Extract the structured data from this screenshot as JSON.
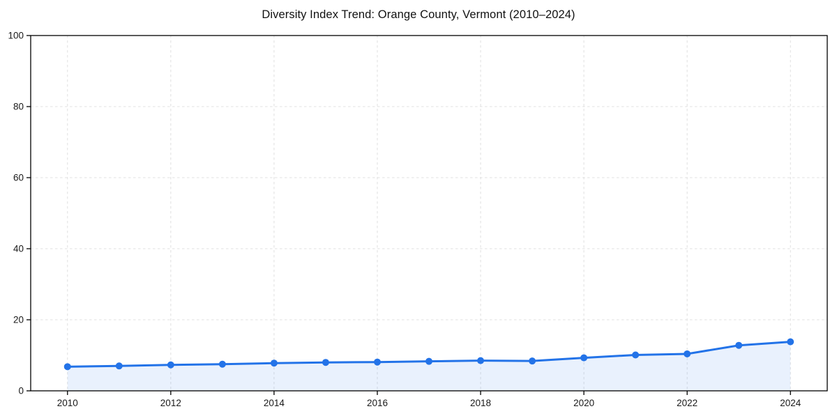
{
  "chart_data": {
    "type": "line",
    "title": "Diversity Index Trend: Orange County, Vermont (2010–2024)",
    "x": [
      2010,
      2011,
      2012,
      2013,
      2014,
      2015,
      2016,
      2017,
      2018,
      2019,
      2020,
      2021,
      2022,
      2023,
      2024
    ],
    "series": [
      {
        "name": "Diversity Index",
        "values": [
          6.8,
          7.0,
          7.3,
          7.5,
          7.8,
          8.0,
          8.1,
          8.3,
          8.5,
          8.4,
          9.3,
          10.1,
          10.4,
          12.8,
          13.8
        ]
      }
    ],
    "xlabel": "",
    "ylabel": "",
    "ylim": [
      0,
      100
    ],
    "yticks": [
      0,
      20,
      40,
      60,
      80,
      100
    ],
    "xticks": [
      2010,
      2012,
      2014,
      2016,
      2018,
      2020,
      2022,
      2024
    ],
    "grid": true,
    "grid_style": "dashed",
    "legend": "none",
    "area_fill": true,
    "marker": "circle",
    "colors": {
      "line": "#2373e8",
      "area_fill": "#2373e8",
      "area_fill_opacity": "0.10",
      "grid": "#e0e0e0",
      "axis": "#000000",
      "tick_text": "#1a1a1a",
      "title_text": "#111111",
      "background": "#ffffff"
    }
  }
}
